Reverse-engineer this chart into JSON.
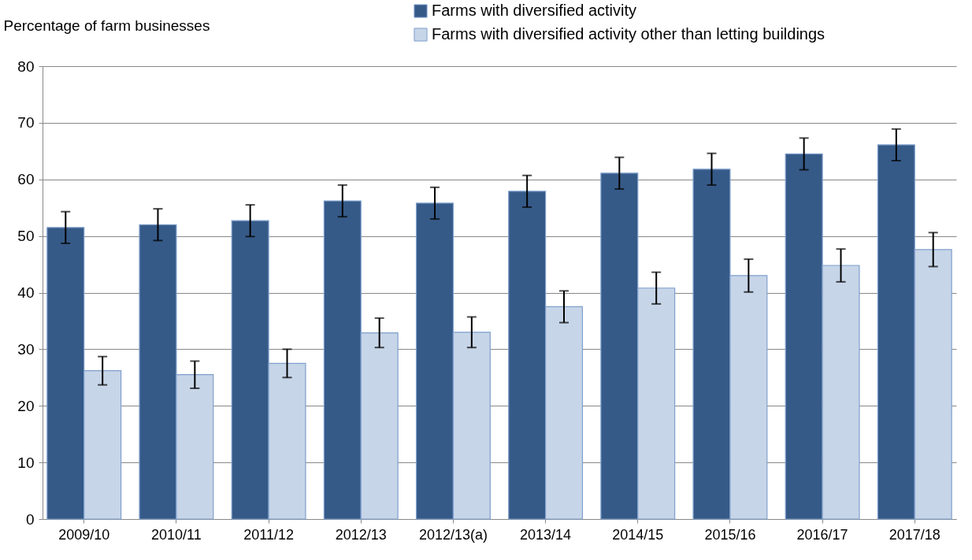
{
  "chart_data": {
    "type": "bar",
    "ylabel": "Percentage of farm businesses",
    "categories": [
      "2009/10",
      "2010/11",
      "2011/12",
      "2012/13",
      "2012/13(a)",
      "2013/14",
      "2014/15",
      "2015/16",
      "2016/17",
      "2017/18"
    ],
    "series": [
      {
        "name": "Farms with diversified activity",
        "color": "#365a88",
        "values": [
          51.5,
          52.0,
          52.7,
          56.2,
          55.8,
          57.9,
          61.1,
          61.8,
          64.5,
          66.1
        ],
        "errors": [
          2.8,
          2.8,
          2.8,
          2.8,
          2.8,
          2.8,
          2.8,
          2.8,
          2.8,
          2.8
        ]
      },
      {
        "name": "Farms with diversified activity other than letting buildings",
        "color": "#c7d5e8",
        "values": [
          26.2,
          25.5,
          27.5,
          32.9,
          33.0,
          37.5,
          40.8,
          43.0,
          44.8,
          47.6
        ],
        "errors": [
          2.5,
          2.4,
          2.5,
          2.6,
          2.7,
          2.8,
          2.8,
          2.9,
          2.9,
          3.0
        ]
      }
    ],
    "ylim": [
      0,
      80
    ],
    "yticks": [
      0,
      10,
      20,
      30,
      40,
      50,
      60,
      70,
      80
    ],
    "grid": "y",
    "legend": "top right"
  }
}
